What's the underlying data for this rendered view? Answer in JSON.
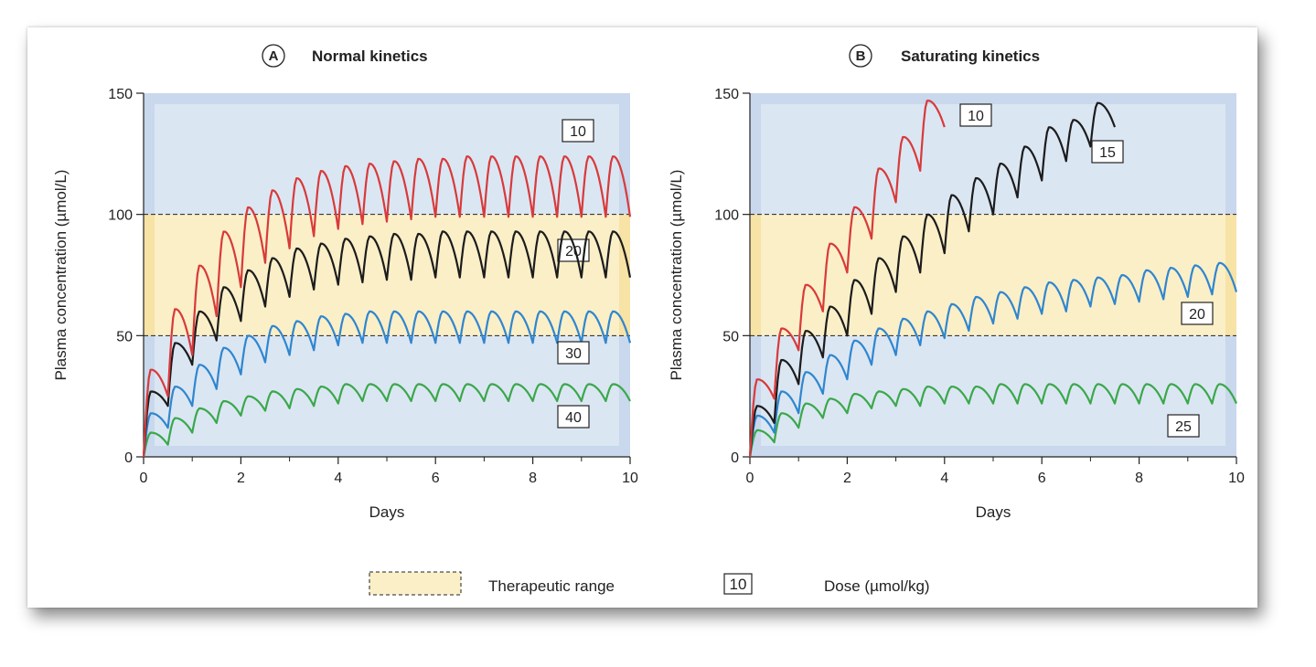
{
  "chart_data": [
    {
      "type": "line",
      "panel_letter": "A",
      "title": "Normal kinetics",
      "xlabel": "Days",
      "ylabel": "Plasma concentration (µmol/L)",
      "xlim": [
        0,
        10
      ],
      "ylim": [
        0,
        150
      ],
      "xticks": [
        0,
        2,
        4,
        6,
        8,
        10
      ],
      "yticks": [
        0,
        50,
        100,
        150
      ],
      "therapeutic_range": [
        50,
        100
      ],
      "dosing_interval_days": 0.5,
      "series": [
        {
          "name": "10",
          "color": "#3aa84a",
          "peaks": [
            10,
            16,
            20,
            23,
            25,
            27,
            28,
            29,
            30,
            30,
            30,
            30,
            30,
            30,
            30,
            30,
            30,
            30,
            30,
            30
          ],
          "troughs": [
            5,
            10,
            14,
            17,
            19,
            20,
            21,
            22,
            23,
            23,
            23,
            23,
            23,
            23,
            23,
            23,
            23,
            23,
            23,
            23
          ]
        },
        {
          "name": "20",
          "color": "#2f86cf",
          "peaks": [
            18,
            29,
            38,
            45,
            50,
            54,
            56,
            58,
            59,
            60,
            60,
            60,
            60,
            60,
            60,
            60,
            60,
            60,
            60,
            60
          ],
          "troughs": [
            12,
            21,
            28,
            34,
            39,
            42,
            44,
            46,
            47,
            47,
            47,
            47,
            47,
            47,
            47,
            47,
            47,
            47,
            47,
            47
          ]
        },
        {
          "name": "30",
          "color": "#1c1c1c",
          "peaks": [
            27,
            47,
            60,
            70,
            77,
            82,
            86,
            88,
            90,
            91,
            92,
            92,
            93,
            93,
            93,
            93,
            93,
            93,
            93,
            93
          ],
          "troughs": [
            21,
            38,
            48,
            56,
            62,
            66,
            69,
            71,
            72,
            73,
            73,
            74,
            74,
            74,
            74,
            74,
            74,
            74,
            74,
            74
          ]
        },
        {
          "name": "40",
          "color": "#d83a3a",
          "peaks": [
            36,
            61,
            79,
            93,
            103,
            110,
            115,
            118,
            120,
            121,
            122,
            123,
            123,
            124,
            124,
            124,
            124,
            124,
            124,
            124
          ],
          "troughs": [
            25,
            42,
            58,
            70,
            80,
            86,
            91,
            94,
            96,
            97,
            98,
            99,
            99,
            99,
            99,
            99,
            99,
            99,
            99,
            99
          ]
        }
      ]
    },
    {
      "type": "line",
      "panel_letter": "B",
      "title": "Saturating kinetics",
      "xlabel": "Days",
      "ylabel": "Plasma concentration (µmol/L)",
      "xlim": [
        0,
        10
      ],
      "ylim": [
        0,
        150
      ],
      "xticks": [
        0,
        2,
        4,
        6,
        8,
        10
      ],
      "yticks": [
        0,
        50,
        100,
        150
      ],
      "therapeutic_range": [
        50,
        100
      ],
      "dosing_interval_days": 0.5,
      "series": [
        {
          "name": "10",
          "color": "#3aa84a",
          "peaks": [
            11,
            18,
            22,
            24,
            26,
            27,
            28,
            29,
            29,
            29,
            30,
            30,
            30,
            30,
            30,
            30,
            30,
            30,
            30,
            30
          ],
          "troughs": [
            6,
            12,
            16,
            18,
            20,
            21,
            21,
            22,
            22,
            22,
            22,
            22,
            22,
            22,
            22,
            22,
            22,
            22,
            22,
            22
          ]
        },
        {
          "name": "15",
          "color": "#2f86cf",
          "peaks": [
            17,
            27,
            35,
            42,
            48,
            53,
            57,
            60,
            63,
            66,
            68,
            70,
            72,
            73,
            74,
            75,
            77,
            78,
            79,
            80
          ],
          "troughs": [
            10,
            18,
            26,
            32,
            38,
            42,
            46,
            49,
            52,
            55,
            57,
            59,
            60,
            62,
            63,
            64,
            65,
            66,
            67,
            68
          ]
        },
        {
          "name": "20",
          "color": "#1c1c1c",
          "peaks": [
            21,
            40,
            52,
            62,
            73,
            82,
            91,
            100,
            108,
            115,
            121,
            128,
            136,
            139,
            146
          ],
          "troughs": [
            14,
            30,
            41,
            50,
            59,
            68,
            76,
            84,
            93,
            100,
            107,
            114,
            122,
            128,
            136
          ]
        },
        {
          "name": "25",
          "color": "#d83a3a",
          "peaks": [
            32,
            53,
            71,
            88,
            103,
            119,
            132,
            147
          ],
          "troughs": [
            24,
            44,
            60,
            76,
            90,
            105,
            118,
            136
          ]
        }
      ]
    }
  ],
  "legend": {
    "therapeutic_label": "Therapeutic range",
    "dose_box": "10",
    "dose_label": "Dose (µmol/kg)"
  },
  "colors": {
    "plot_background": "#c9d8ec",
    "inner_band": "#dbe6f3",
    "therapeutic_fill": "#fbefc8"
  }
}
